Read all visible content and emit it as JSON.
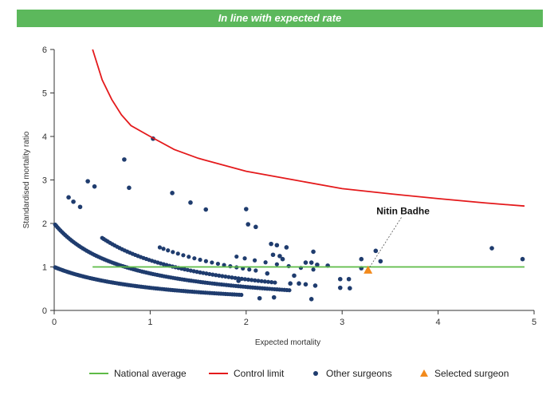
{
  "banner": {
    "text": "In line with expected rate",
    "color": "#5cb85c"
  },
  "chart_data": {
    "type": "scatter",
    "xlabel": "Expected mortality",
    "ylabel": "Standardised mortality ratio",
    "xlim": [
      0,
      5
    ],
    "ylim": [
      0,
      6
    ],
    "xticks": [
      "0",
      "1",
      "2",
      "3",
      "4",
      "5"
    ],
    "yticks": [
      "0",
      "1",
      "2",
      "3",
      "4",
      "5",
      "6"
    ],
    "legend_position": "bottom",
    "legend": [
      {
        "label": "National average",
        "kind": "line",
        "color": "#5dbb46"
      },
      {
        "label": "Control limit",
        "kind": "line",
        "color": "#e41a1c"
      },
      {
        "label": "Other surgeons",
        "kind": "dot",
        "color": "#1f3c6e"
      },
      {
        "label": "Selected surgeon",
        "kind": "triangle",
        "color": "#f28a1c"
      }
    ],
    "national_average": {
      "y": 1,
      "x_start": 0.4,
      "x_end": 4.9,
      "color": "#5dbb46"
    },
    "control_limit": {
      "color": "#e41a1c",
      "points": [
        [
          0.4,
          6.0
        ],
        [
          0.5,
          5.3
        ],
        [
          0.6,
          4.85
        ],
        [
          0.7,
          4.5
        ],
        [
          0.8,
          4.25
        ],
        [
          1.0,
          4.0
        ],
        [
          1.25,
          3.7
        ],
        [
          1.5,
          3.5
        ],
        [
          2.0,
          3.2
        ],
        [
          2.5,
          3.0
        ],
        [
          3.0,
          2.8
        ],
        [
          3.5,
          2.68
        ],
        [
          4.0,
          2.57
        ],
        [
          4.5,
          2.47
        ],
        [
          4.9,
          2.4
        ]
      ]
    },
    "other_surgeons": {
      "color": "#1f3c6e",
      "curves": [
        {
          "k": 1,
          "x_from": 0.01,
          "x_to": 1.95,
          "count": 95
        },
        {
          "k": 2,
          "x_from": 0.01,
          "x_to": 2.45,
          "count": 110
        },
        {
          "k": 3,
          "x_from": 0.5,
          "x_to": 2.3,
          "count": 60
        },
        {
          "k": 4,
          "x_from": 1.1,
          "x_to": 2.1,
          "count": 18
        },
        {
          "k": 5,
          "x_from": 1.9,
          "x_to": 2.7,
          "count": 8
        }
      ],
      "points": [
        [
          1.03,
          3.95
        ],
        [
          0.73,
          3.47
        ],
        [
          0.35,
          2.97
        ],
        [
          0.42,
          2.85
        ],
        [
          0.78,
          2.82
        ],
        [
          0.15,
          2.6
        ],
        [
          0.2,
          2.5
        ],
        [
          0.27,
          2.38
        ],
        [
          1.23,
          2.7
        ],
        [
          1.42,
          2.48
        ],
        [
          1.58,
          2.32
        ],
        [
          2.0,
          2.33
        ],
        [
          2.02,
          1.98
        ],
        [
          2.1,
          1.92
        ],
        [
          2.26,
          1.53
        ],
        [
          2.32,
          1.5
        ],
        [
          2.42,
          1.45
        ],
        [
          2.28,
          1.28
        ],
        [
          2.35,
          1.25
        ],
        [
          2.38,
          1.18
        ],
        [
          2.62,
          1.1
        ],
        [
          2.68,
          1.1
        ],
        [
          2.7,
          1.35
        ],
        [
          2.74,
          1.05
        ],
        [
          2.85,
          1.03
        ],
        [
          2.98,
          0.72
        ],
        [
          3.07,
          0.72
        ],
        [
          3.2,
          1.18
        ],
        [
          3.35,
          1.37
        ],
        [
          3.4,
          1.13
        ],
        [
          3.2,
          0.97
        ],
        [
          2.98,
          0.52
        ],
        [
          3.08,
          0.51
        ],
        [
          2.68,
          0.26
        ],
        [
          2.72,
          0.57
        ],
        [
          2.62,
          0.6
        ],
        [
          2.55,
          0.62
        ],
        [
          2.5,
          0.8
        ],
        [
          2.46,
          0.62
        ],
        [
          2.22,
          0.85
        ],
        [
          4.56,
          1.43
        ],
        [
          4.88,
          1.18
        ],
        [
          1.92,
          0.68
        ],
        [
          2.14,
          0.28
        ],
        [
          2.29,
          0.3
        ]
      ]
    },
    "selected_surgeon": {
      "x": 3.27,
      "y": 0.92,
      "label": "Nitin Badhe",
      "color": "#f28a1c"
    }
  }
}
